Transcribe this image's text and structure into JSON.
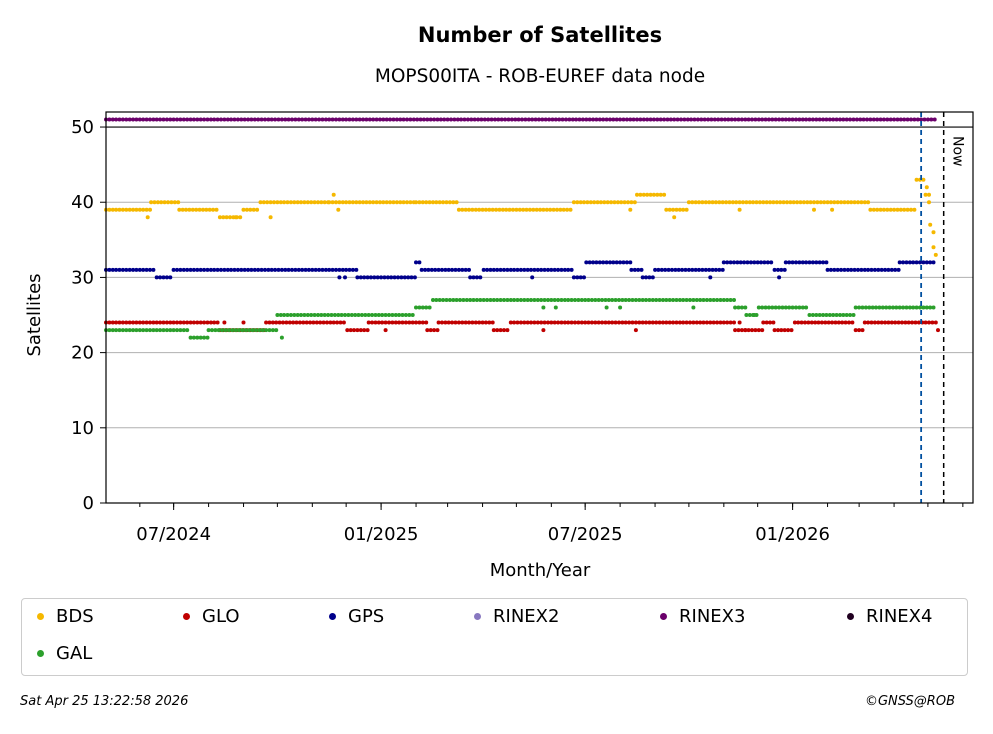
{
  "chart_data": {
    "type": "scatter",
    "title": "Number of Satellites",
    "subtitle": "MOPS00ITA - ROB-EUREF data node",
    "xlabel": "Month/Year",
    "ylabel": "Satellites",
    "ylim": [
      0,
      52
    ],
    "xlim": [
      "2024-05-02",
      "2026-06-10"
    ],
    "yticks": [
      0,
      10,
      20,
      30,
      40,
      50
    ],
    "xticks": [
      {
        "date": "2024-07-01",
        "label": "07/2024"
      },
      {
        "date": "2025-01-01",
        "label": "01/2025"
      },
      {
        "date": "2025-07-01",
        "label": "07/2025"
      },
      {
        "date": "2026-01-01",
        "label": "01/2026"
      }
    ],
    "grid": "y",
    "now_label": "Now",
    "now_date": "2026-05-15",
    "marker_date": "2026-04-25",
    "series": [
      {
        "name": "BDS",
        "color": "#f5b800",
        "segments": [
          [
            "2024-05-02",
            "2024-06-10",
            39
          ],
          [
            "2024-06-11",
            "2024-07-05",
            40
          ],
          [
            "2024-07-06",
            "2024-08-10",
            39
          ],
          [
            "2024-08-11",
            "2024-08-31",
            38
          ],
          [
            "2024-09-01",
            "2024-09-15",
            39
          ],
          [
            "2024-09-16",
            "2024-11-15",
            40
          ],
          [
            "2024-11-16",
            "2025-01-31",
            40
          ],
          [
            "2025-02-01",
            "2025-03-10",
            40
          ],
          [
            "2025-03-11",
            "2025-06-20",
            39
          ],
          [
            "2025-06-21",
            "2025-08-15",
            40
          ],
          [
            "2025-08-16",
            "2025-09-10",
            41
          ],
          [
            "2025-09-11",
            "2025-09-30",
            39
          ],
          [
            "2025-10-01",
            "2026-01-31",
            40
          ],
          [
            "2026-02-01",
            "2026-03-10",
            40
          ],
          [
            "2026-03-11",
            "2026-04-20",
            39
          ],
          [
            "2026-04-21",
            "2026-04-28",
            43
          ],
          [
            "2026-04-29",
            "2026-05-02",
            41
          ],
          [
            "2026-05-03",
            "2026-05-05",
            37
          ],
          [
            "2026-05-06",
            "2026-05-08",
            34
          ]
        ],
        "points": [
          [
            "2024-06-08",
            38
          ],
          [
            "2024-08-25",
            38
          ],
          [
            "2024-09-25",
            38
          ],
          [
            "2024-11-20",
            41
          ],
          [
            "2024-11-24",
            39
          ],
          [
            "2025-08-10",
            39
          ],
          [
            "2025-09-18",
            38
          ],
          [
            "2025-11-15",
            39
          ],
          [
            "2026-01-20",
            39
          ],
          [
            "2026-02-05",
            39
          ],
          [
            "2026-04-30",
            42
          ],
          [
            "2026-05-02",
            40
          ],
          [
            "2026-05-06",
            36
          ],
          [
            "2026-05-08",
            33
          ]
        ]
      },
      {
        "name": "GLO",
        "color": "#c00000",
        "segments": [
          [
            "2024-05-02",
            "2024-08-10",
            24
          ],
          [
            "2024-08-11",
            "2024-09-20",
            23
          ],
          [
            "2024-09-21",
            "2024-12-01",
            24
          ],
          [
            "2024-12-02",
            "2024-12-20",
            23
          ],
          [
            "2024-12-21",
            "2025-02-10",
            24
          ],
          [
            "2025-02-11",
            "2025-02-20",
            23
          ],
          [
            "2025-02-21",
            "2025-04-10",
            24
          ],
          [
            "2025-04-11",
            "2025-04-25",
            23
          ],
          [
            "2025-04-26",
            "2025-11-10",
            24
          ],
          [
            "2025-11-11",
            "2025-12-05",
            23
          ],
          [
            "2025-12-06",
            "2025-12-15",
            24
          ],
          [
            "2025-12-16",
            "2026-01-02",
            23
          ],
          [
            "2026-01-03",
            "2026-02-25",
            24
          ],
          [
            "2026-02-26",
            "2026-03-05",
            23
          ],
          [
            "2026-03-06",
            "2026-05-08",
            24
          ]
        ],
        "points": [
          [
            "2024-08-15",
            24
          ],
          [
            "2024-09-01",
            24
          ],
          [
            "2025-01-05",
            23
          ],
          [
            "2025-05-25",
            23
          ],
          [
            "2025-08-15",
            23
          ],
          [
            "2025-11-15",
            24
          ],
          [
            "2025-11-20",
            23
          ],
          [
            "2026-05-10",
            23
          ]
        ]
      },
      {
        "name": "GPS",
        "color": "#00008b",
        "segments": [
          [
            "2024-05-02",
            "2024-06-15",
            31
          ],
          [
            "2024-06-16",
            "2024-06-30",
            30
          ],
          [
            "2024-07-01",
            "2024-12-10",
            31
          ],
          [
            "2024-12-11",
            "2024-12-31",
            30
          ],
          [
            "2025-01-01",
            "2025-01-15",
            30
          ],
          [
            "2025-01-16",
            "2025-01-31",
            30
          ],
          [
            "2025-02-01",
            "2025-02-05",
            32
          ],
          [
            "2025-02-06",
            "2025-03-20",
            31
          ],
          [
            "2025-03-21",
            "2025-04-01",
            30
          ],
          [
            "2025-04-02",
            "2025-06-20",
            31
          ],
          [
            "2025-06-21",
            "2025-07-01",
            30
          ],
          [
            "2025-07-02",
            "2025-08-10",
            32
          ],
          [
            "2025-08-11",
            "2025-08-20",
            31
          ],
          [
            "2025-08-21",
            "2025-08-31",
            30
          ],
          [
            "2025-09-01",
            "2025-10-31",
            31
          ],
          [
            "2025-11-01",
            "2025-12-15",
            32
          ],
          [
            "2025-12-16",
            "2025-12-25",
            31
          ],
          [
            "2025-12-26",
            "2026-01-31",
            32
          ],
          [
            "2026-02-01",
            "2026-04-05",
            31
          ],
          [
            "2026-04-06",
            "2026-05-08",
            32
          ]
        ],
        "points": [
          [
            "2024-11-25",
            30
          ],
          [
            "2024-11-30",
            30
          ],
          [
            "2025-05-15",
            30
          ],
          [
            "2025-10-20",
            30
          ],
          [
            "2025-12-20",
            30
          ]
        ]
      },
      {
        "name": "RINEX2",
        "color": "#8878c0",
        "segments": [],
        "points": []
      },
      {
        "name": "RINEX3",
        "color": "#6b006b",
        "segments": [
          [
            "2024-05-02",
            "2026-05-08",
            51
          ]
        ],
        "points": []
      },
      {
        "name": "RINEX4",
        "color": "#200020",
        "segments": [],
        "points": []
      },
      {
        "name": "GAL",
        "color": "#2ca02c",
        "segments": [
          [
            "2024-05-02",
            "2024-07-15",
            23
          ],
          [
            "2024-07-16",
            "2024-07-31",
            22
          ],
          [
            "2024-08-01",
            "2024-09-30",
            23
          ],
          [
            "2024-10-01",
            "2025-01-31",
            25
          ],
          [
            "2025-02-01",
            "2025-02-15",
            26
          ],
          [
            "2025-02-16",
            "2025-11-10",
            27
          ],
          [
            "2025-11-11",
            "2025-11-20",
            26
          ],
          [
            "2025-11-21",
            "2025-12-01",
            25
          ],
          [
            "2025-12-02",
            "2026-01-15",
            26
          ],
          [
            "2026-01-16",
            "2026-02-25",
            25
          ],
          [
            "2026-02-26",
            "2026-05-08",
            26
          ]
        ],
        "points": [
          [
            "2024-10-05",
            22
          ],
          [
            "2025-05-25",
            26
          ],
          [
            "2025-06-05",
            26
          ],
          [
            "2025-07-20",
            26
          ],
          [
            "2025-08-01",
            26
          ],
          [
            "2025-10-05",
            26
          ],
          [
            "2025-11-28",
            25
          ]
        ]
      }
    ]
  },
  "legend": {
    "items": [
      {
        "label": "BDS",
        "color": "#f5b800"
      },
      {
        "label": "GLO",
        "color": "#c00000"
      },
      {
        "label": "GPS",
        "color": "#00008b"
      },
      {
        "label": "RINEX2",
        "color": "#8878c0"
      },
      {
        "label": "RINEX3",
        "color": "#6b006b"
      },
      {
        "label": "RINEX4",
        "color": "#200020"
      },
      {
        "label": "GAL",
        "color": "#2ca02c"
      }
    ]
  },
  "footer": {
    "timestamp": "Sat Apr 25 13:22:58 2026",
    "copyright": "©GNSS@ROB"
  }
}
